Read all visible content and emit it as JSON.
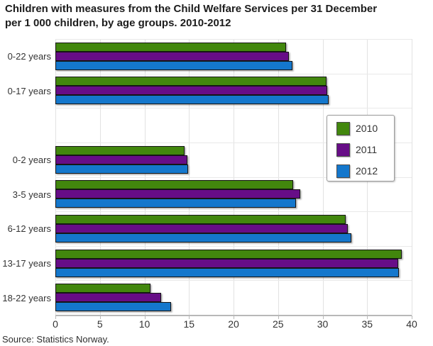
{
  "header": {
    "title_lines": [
      "Children with measures from the Child Welfare Services per 31 December",
      "per 1 000 children, by age groups. 2010-2012"
    ]
  },
  "source": "Source: Statistics Norway.",
  "colors": {
    "grid": "#e2e2e2",
    "axis_line": "#b8b8b8",
    "text": "#333333",
    "title_text": "#1c1c1c"
  },
  "chart_data": {
    "type": "bar",
    "orientation": "horizontal",
    "title": "Children with measures from the Child Welfare Services per 31 December per 1 000 children, by age groups. 2010-2012",
    "categories": [
      "0-22 years",
      "0-17 years",
      "",
      "0-2 years",
      "3-5 years",
      "6-12 years",
      "13-17 years",
      "18-22 years"
    ],
    "series": [
      {
        "name": "2010",
        "color": "#42870d",
        "values": [
          25.9,
          30.4,
          null,
          14.5,
          26.7,
          32.6,
          38.9,
          10.7
        ]
      },
      {
        "name": "2011",
        "color": "#670d87",
        "values": [
          26.2,
          30.5,
          null,
          14.8,
          27.5,
          32.8,
          38.5,
          11.9
        ]
      },
      {
        "name": "2012",
        "color": "#1477cc",
        "values": [
          26.6,
          30.7,
          null,
          14.9,
          27.0,
          33.2,
          38.6,
          13.0
        ]
      }
    ],
    "xlim": [
      0,
      40
    ],
    "xticks": [
      0,
      5,
      10,
      15,
      20,
      25,
      30,
      35,
      40
    ],
    "grid": true,
    "legend_position": "middle-right",
    "xlabel": "",
    "ylabel": ""
  }
}
